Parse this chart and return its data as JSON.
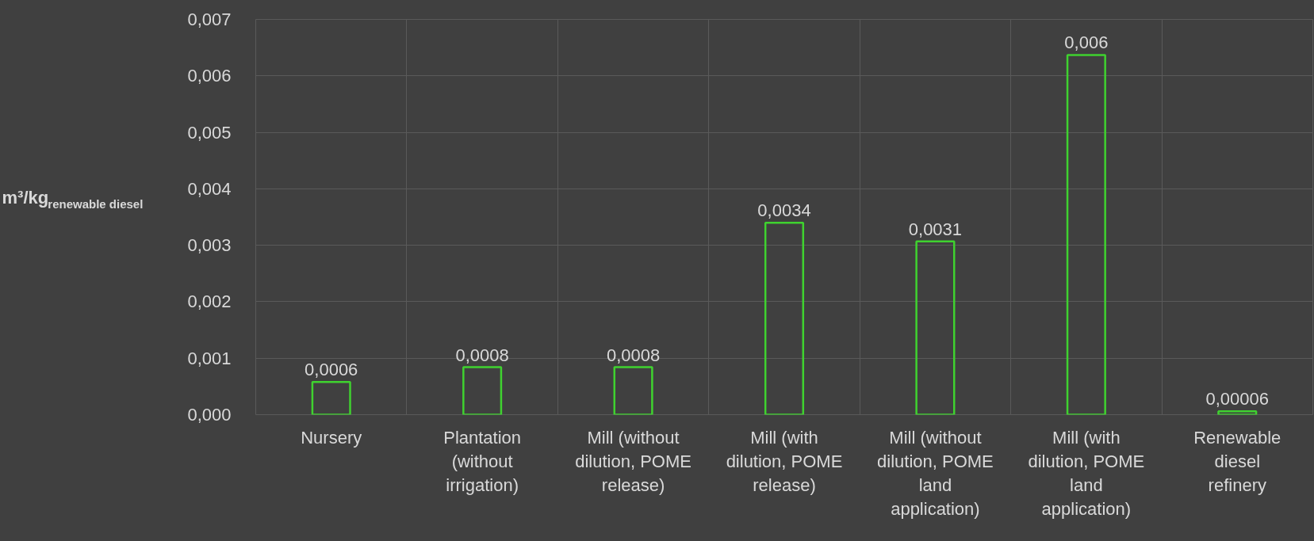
{
  "chart_data": {
    "type": "bar",
    "ylabel": "m³/kg$_{renewable diesel}$",
    "categories": [
      "Nursery",
      "Plantation (without irrigation)",
      "Mill (without dilution, POME release)",
      "Mill (with dilution, POME release)",
      "Mill (without dilution, POME land application)",
      "Mill (with dilution, POME land application)",
      "Renewable diesel refinery"
    ],
    "values": [
      0.00058,
      0.00084,
      0.00084,
      0.0034,
      0.00307,
      0.00637,
      6e-05
    ],
    "value_labels": [
      "0,0006",
      "0,0008",
      "0,0008",
      "0,0034",
      "0,0031",
      "0,006",
      "0,00006"
    ],
    "color": "#3fd22f",
    "ylim": [
      0,
      0.007
    ],
    "yticks": [
      {
        "value": 0,
        "label": "0,000"
      },
      {
        "value": 0.001,
        "label": "0,001"
      },
      {
        "value": 0.002,
        "label": "0,002"
      },
      {
        "value": 0.003,
        "label": "0,003"
      },
      {
        "value": 0.004,
        "label": "0,004"
      },
      {
        "value": 0.005,
        "label": "0,005"
      },
      {
        "value": 0.006,
        "label": "0,006"
      },
      {
        "value": 0.007,
        "label": "0,007"
      }
    ],
    "grid": true
  }
}
